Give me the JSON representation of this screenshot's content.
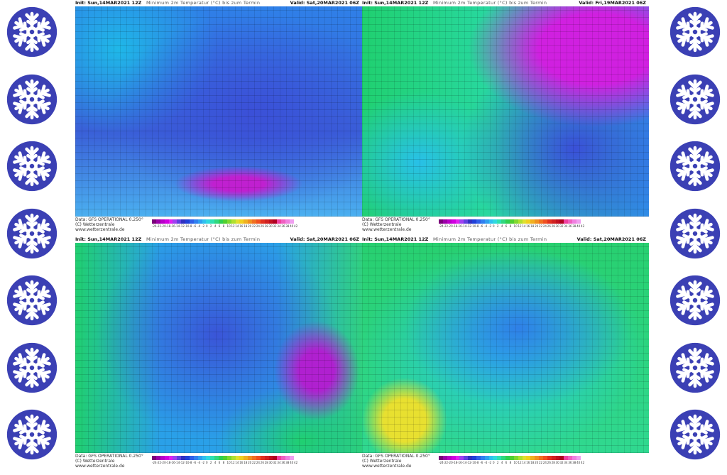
{
  "panels": [
    {
      "header": {
        "init": "Init: Sun,14MAR2021 12Z",
        "title": "Minimum 2m Temperatur (°C) bis zum Termin",
        "valid": "Valid: Sat,20MAR2021 06Z"
      },
      "footer": {
        "data": "Data: GFS OPERATIONAL 0.250°",
        "copyright": "(C) Wetterzentrale",
        "url": "www.wetterzentrale.de"
      }
    },
    {
      "header": {
        "init": "Init: Sun,14MAR2021 12Z",
        "title": "Minimum 2m Temperatur (°C) bis zum Termin",
        "valid": "Valid: Fri,19MAR2021 06Z"
      },
      "footer": {
        "data": "Data: GFS OPERATIONAL 0.250°",
        "copyright": "(C) Wetterzentrale",
        "url": "www.wetterzentrale.de"
      }
    },
    {
      "header": {
        "init": "Init: Sun,14MAR2021 12Z",
        "title": "Minimum 2m Temperatur (°C) bis zum Termin",
        "valid": "Valid: Sat,20MAR2021 06Z"
      },
      "footer": {
        "data": "Data: GFS OPERATIONAL 0.250°",
        "copyright": "(C) Wetterzentrale",
        "url": "www.wetterzentrale.de"
      }
    },
    {
      "header": {
        "init": "Init: Sun,14MAR2021 12Z",
        "title": "Minimum 2m Temperatur (°C) bis zum Termin",
        "valid": "Valid: Sat,20MAR2021 06Z"
      },
      "footer": {
        "data": "Data: GFS OPERATIONAL 0.250°",
        "copyright": "(C) Wetterzentrale",
        "url": "www.wetterzentrale.de"
      }
    }
  ],
  "colorbar_labels": [
    "-24",
    "-22",
    "-20",
    "-18",
    "-16",
    "-14",
    "-12",
    "-10",
    "-8",
    "-6",
    "-4",
    "-2",
    "0",
    "2",
    "4",
    "6",
    "8",
    "10",
    "12",
    "14",
    "16",
    "18",
    "20",
    "22",
    "24",
    "26",
    "28",
    "30",
    "32",
    "34",
    "36",
    "38",
    "40",
    "42"
  ]
}
